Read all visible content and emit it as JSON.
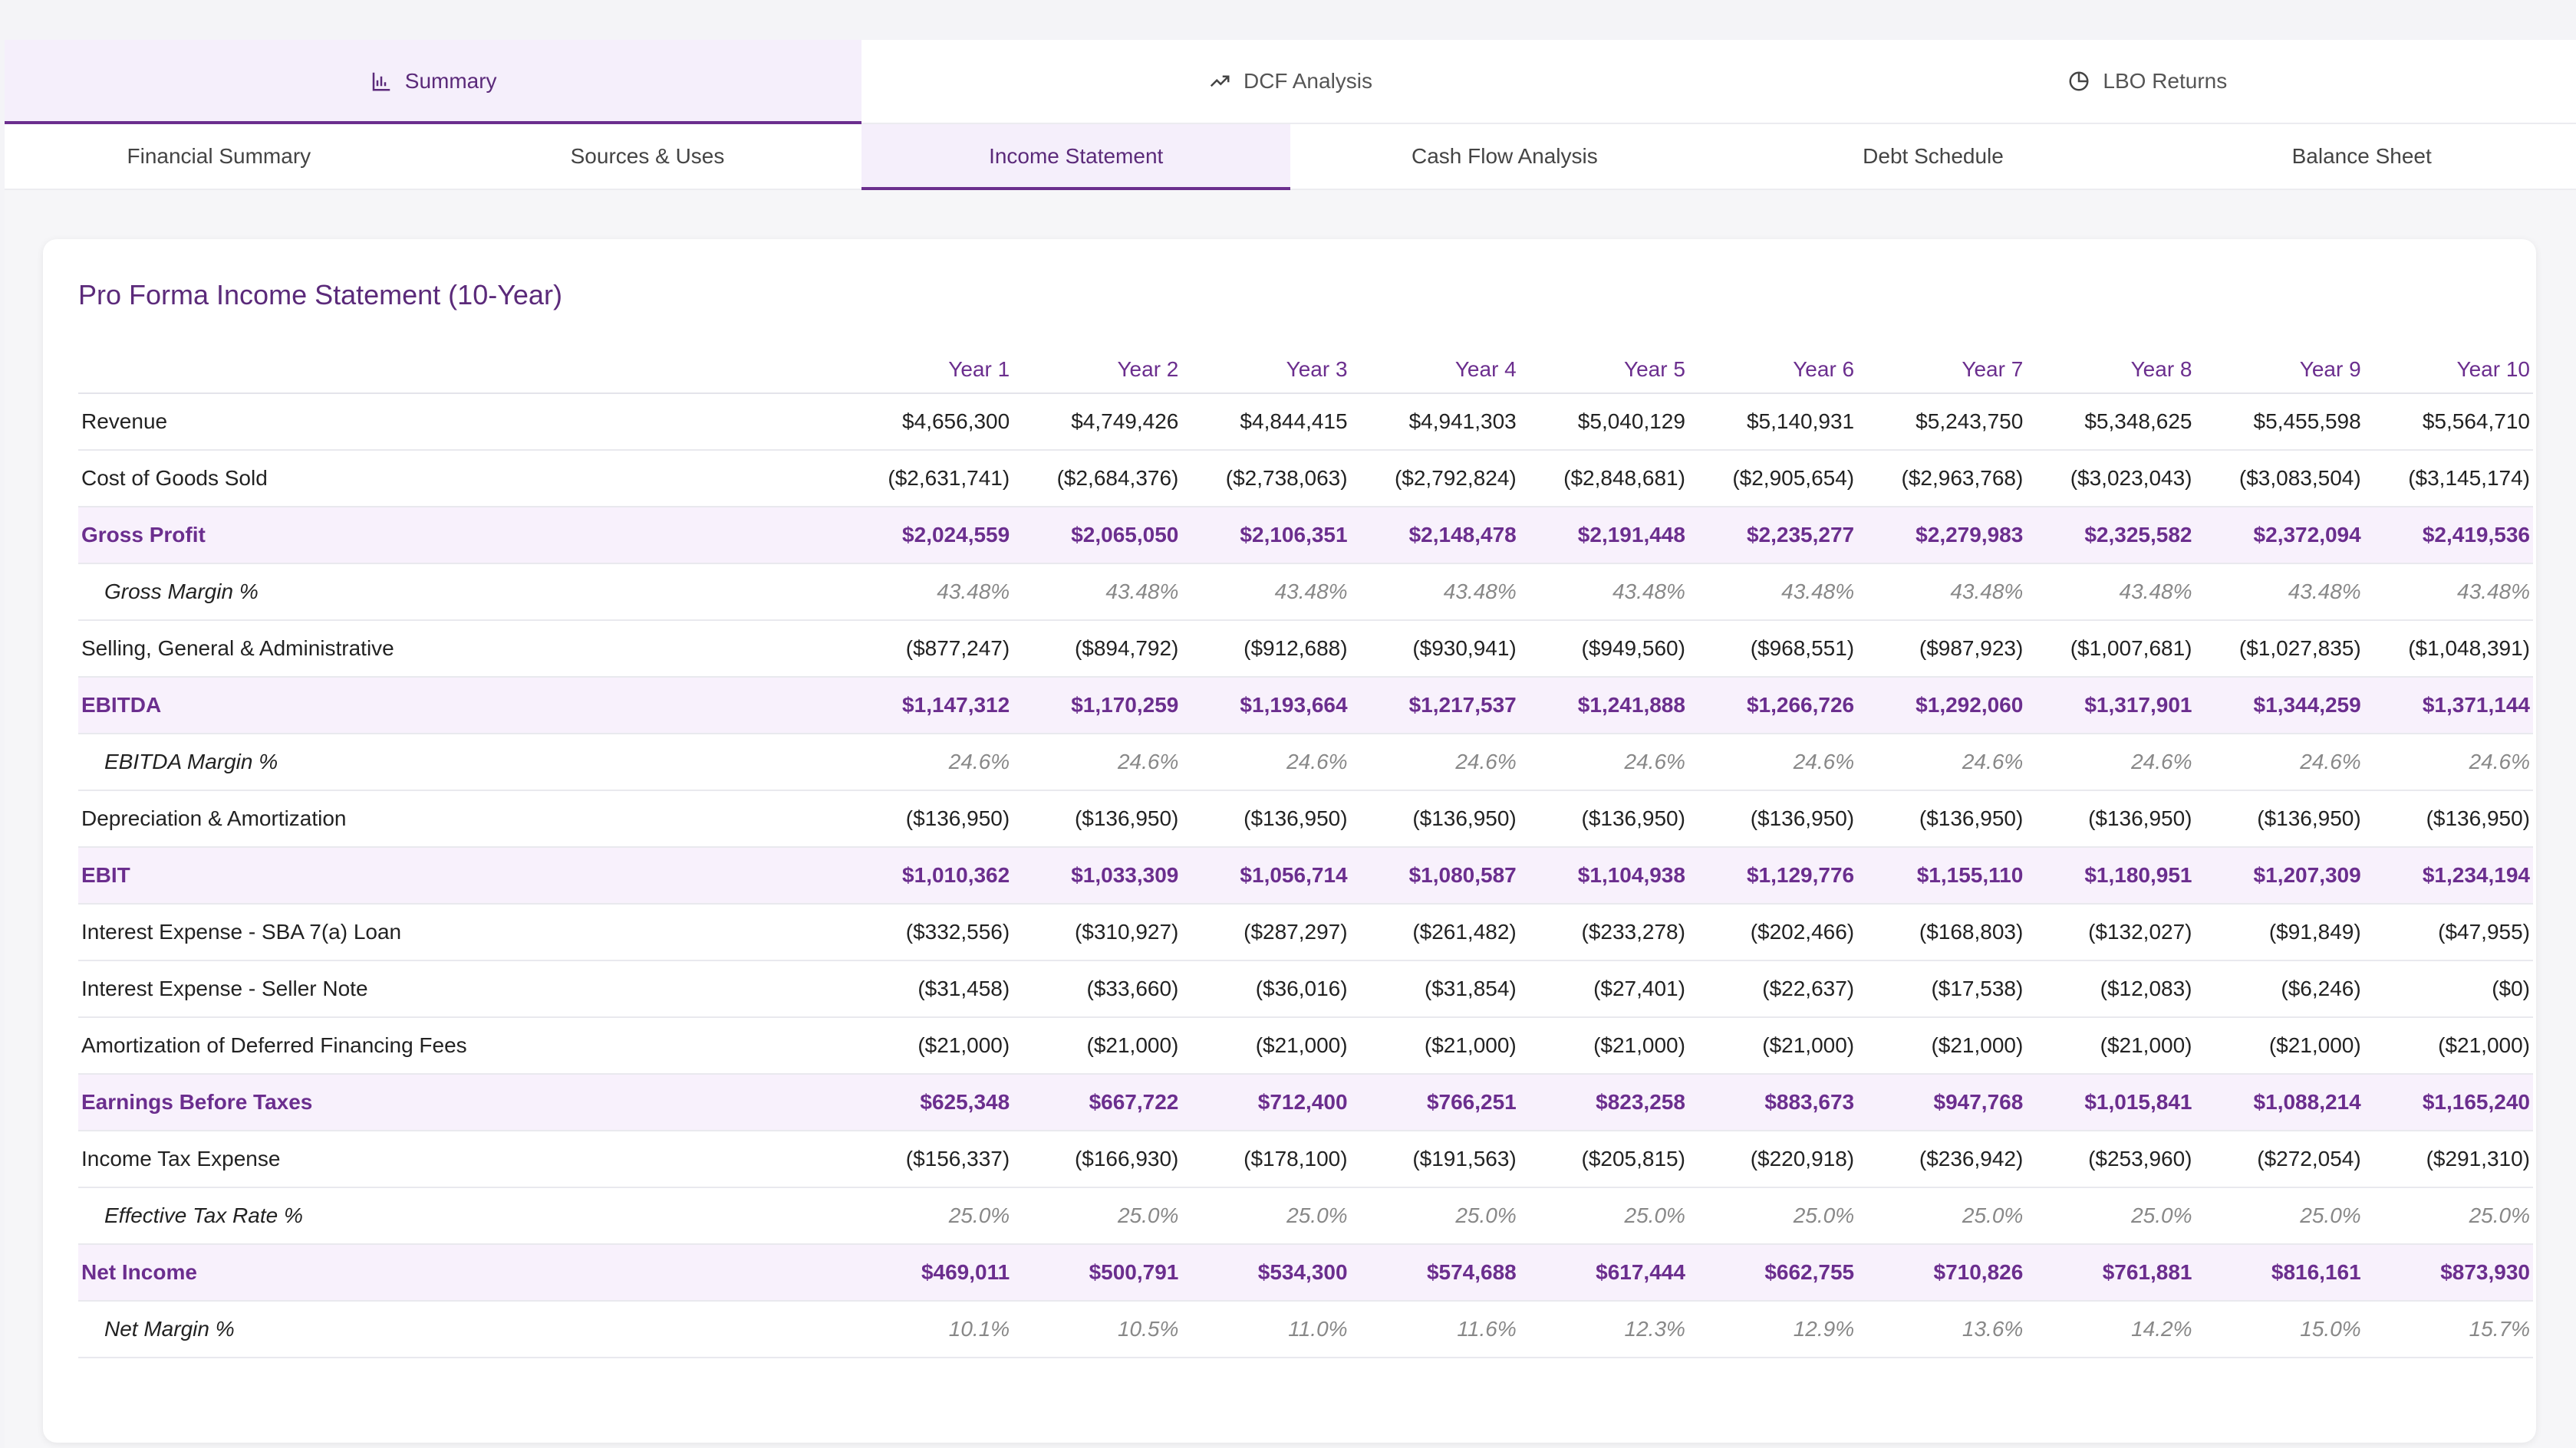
{
  "main_tabs": [
    {
      "label": "Summary",
      "icon": "bar-chart-icon",
      "active": true
    },
    {
      "label": "DCF Analysis",
      "icon": "trending-up-icon",
      "active": false
    },
    {
      "label": "LBO Returns",
      "icon": "pie-chart-icon",
      "active": false
    }
  ],
  "sub_tabs": [
    {
      "label": "Financial Summary"
    },
    {
      "label": "Sources & Uses"
    },
    {
      "label": "Income Statement",
      "active": true
    },
    {
      "label": "Cash Flow Analysis"
    },
    {
      "label": "Debt Schedule"
    },
    {
      "label": "Balance Sheet"
    }
  ],
  "card": {
    "title": "Pro Forma Income Statement (10-Year)"
  },
  "table": {
    "columns": [
      "Year 1",
      "Year 2",
      "Year 3",
      "Year 4",
      "Year 5",
      "Year 6",
      "Year 7",
      "Year 8",
      "Year 9",
      "Year 10"
    ],
    "rows": [
      {
        "label": "Revenue",
        "type": "normal",
        "values": [
          "$4,656,300",
          "$4,749,426",
          "$4,844,415",
          "$4,941,303",
          "$5,040,129",
          "$5,140,931",
          "$5,243,750",
          "$5,348,625",
          "$5,455,598",
          "$5,564,710"
        ]
      },
      {
        "label": "Cost of Goods Sold",
        "type": "normal",
        "values": [
          "($2,631,741)",
          "($2,684,376)",
          "($2,738,063)",
          "($2,792,824)",
          "($2,848,681)",
          "($2,905,654)",
          "($2,963,768)",
          "($3,023,043)",
          "($3,083,504)",
          "($3,145,174)"
        ]
      },
      {
        "label": "Gross Profit",
        "type": "highlight",
        "values": [
          "$2,024,559",
          "$2,065,050",
          "$2,106,351",
          "$2,148,478",
          "$2,191,448",
          "$2,235,277",
          "$2,279,983",
          "$2,325,582",
          "$2,372,094",
          "$2,419,536"
        ]
      },
      {
        "label": "Gross Margin %",
        "type": "pct",
        "values": [
          "43.48%",
          "43.48%",
          "43.48%",
          "43.48%",
          "43.48%",
          "43.48%",
          "43.48%",
          "43.48%",
          "43.48%",
          "43.48%"
        ]
      },
      {
        "label": "Selling, General & Administrative",
        "type": "normal",
        "values": [
          "($877,247)",
          "($894,792)",
          "($912,688)",
          "($930,941)",
          "($949,560)",
          "($968,551)",
          "($987,923)",
          "($1,007,681)",
          "($1,027,835)",
          "($1,048,391)"
        ]
      },
      {
        "label": "EBITDA",
        "type": "highlight",
        "values": [
          "$1,147,312",
          "$1,170,259",
          "$1,193,664",
          "$1,217,537",
          "$1,241,888",
          "$1,266,726",
          "$1,292,060",
          "$1,317,901",
          "$1,344,259",
          "$1,371,144"
        ]
      },
      {
        "label": "EBITDA Margin %",
        "type": "pct",
        "values": [
          "24.6%",
          "24.6%",
          "24.6%",
          "24.6%",
          "24.6%",
          "24.6%",
          "24.6%",
          "24.6%",
          "24.6%",
          "24.6%"
        ]
      },
      {
        "label": "Depreciation & Amortization",
        "type": "normal",
        "values": [
          "($136,950)",
          "($136,950)",
          "($136,950)",
          "($136,950)",
          "($136,950)",
          "($136,950)",
          "($136,950)",
          "($136,950)",
          "($136,950)",
          "($136,950)"
        ]
      },
      {
        "label": "EBIT",
        "type": "highlight",
        "values": [
          "$1,010,362",
          "$1,033,309",
          "$1,056,714",
          "$1,080,587",
          "$1,104,938",
          "$1,129,776",
          "$1,155,110",
          "$1,180,951",
          "$1,207,309",
          "$1,234,194"
        ]
      },
      {
        "label": "Interest Expense - SBA 7(a) Loan",
        "type": "normal",
        "values": [
          "($332,556)",
          "($310,927)",
          "($287,297)",
          "($261,482)",
          "($233,278)",
          "($202,466)",
          "($168,803)",
          "($132,027)",
          "($91,849)",
          "($47,955)"
        ]
      },
      {
        "label": "Interest Expense - Seller Note",
        "type": "normal",
        "values": [
          "($31,458)",
          "($33,660)",
          "($36,016)",
          "($31,854)",
          "($27,401)",
          "($22,637)",
          "($17,538)",
          "($12,083)",
          "($6,246)",
          "($0)"
        ]
      },
      {
        "label": "Amortization of Deferred Financing Fees",
        "type": "normal",
        "values": [
          "($21,000)",
          "($21,000)",
          "($21,000)",
          "($21,000)",
          "($21,000)",
          "($21,000)",
          "($21,000)",
          "($21,000)",
          "($21,000)",
          "($21,000)"
        ]
      },
      {
        "label": "Earnings Before Taxes",
        "type": "highlight",
        "values": [
          "$625,348",
          "$667,722",
          "$712,400",
          "$766,251",
          "$823,258",
          "$883,673",
          "$947,768",
          "$1,015,841",
          "$1,088,214",
          "$1,165,240"
        ]
      },
      {
        "label": "Income Tax Expense",
        "type": "normal",
        "values": [
          "($156,337)",
          "($166,930)",
          "($178,100)",
          "($191,563)",
          "($205,815)",
          "($220,918)",
          "($236,942)",
          "($253,960)",
          "($272,054)",
          "($291,310)"
        ]
      },
      {
        "label": "Effective Tax Rate %",
        "type": "pct",
        "values": [
          "25.0%",
          "25.0%",
          "25.0%",
          "25.0%",
          "25.0%",
          "25.0%",
          "25.0%",
          "25.0%",
          "25.0%",
          "25.0%"
        ]
      },
      {
        "label": "Net Income",
        "type": "highlight",
        "values": [
          "$469,011",
          "$500,791",
          "$534,300",
          "$574,688",
          "$617,444",
          "$662,755",
          "$710,826",
          "$761,881",
          "$816,161",
          "$873,930"
        ]
      },
      {
        "label": "Net Margin %",
        "type": "pct",
        "values": [
          "10.1%",
          "10.5%",
          "11.0%",
          "11.6%",
          "12.3%",
          "12.9%",
          "13.6%",
          "14.2%",
          "15.0%",
          "15.7%"
        ]
      }
    ]
  }
}
